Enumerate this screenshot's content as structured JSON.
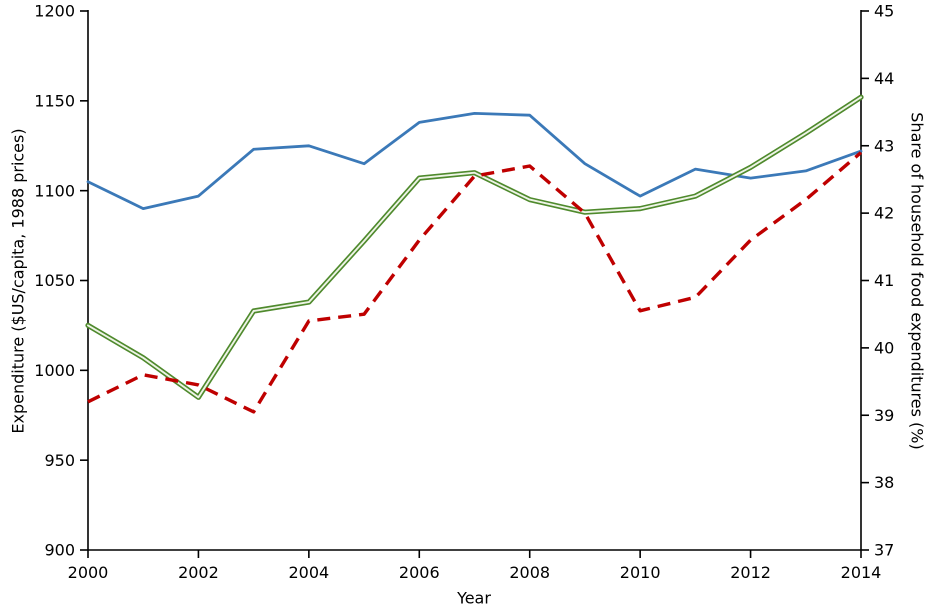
{
  "chart_data": {
    "type": "line",
    "title": "",
    "xlabel": "Year",
    "ylabel_left": "Expenditure ($US/capita, 1988 prices)",
    "ylabel_right": "Share of household food expenditures (%)",
    "x": [
      2000,
      2001,
      2002,
      2003,
      2004,
      2005,
      2006,
      2007,
      2008,
      2009,
      2010,
      2011,
      2012,
      2013,
      2014
    ],
    "x_ticks": [
      2000,
      2002,
      2004,
      2006,
      2008,
      2010,
      2012,
      2014
    ],
    "ylim_left": [
      900,
      1200
    ],
    "yticks_left": [
      900,
      950,
      1000,
      1050,
      1100,
      1150,
      1200
    ],
    "ylim_right": [
      37,
      45
    ],
    "yticks_right": [
      37,
      38,
      39,
      40,
      41,
      42,
      43,
      44,
      45
    ],
    "grid": false,
    "legend": "none",
    "series": [
      {
        "name": "blue-solid-expenditure",
        "axis": "left",
        "style": "solid",
        "color": "#3b79b8",
        "values": [
          1105,
          1090,
          1097,
          1123,
          1125,
          1115,
          1138,
          1143,
          1142,
          1115,
          1097,
          1112,
          1107,
          1111,
          1122
        ]
      },
      {
        "name": "green-double-expenditure",
        "axis": "left",
        "style": "double",
        "color": "#4f8a2d",
        "values": [
          1025,
          1007,
          985,
          1033,
          1038,
          1072,
          1107,
          1110,
          1095,
          1088,
          1090,
          1097,
          1113,
          1132,
          1152
        ]
      },
      {
        "name": "red-dashed-food-share",
        "axis": "right",
        "style": "dashed",
        "color": "#bf0000",
        "values": [
          39.2,
          39.6,
          39.45,
          39.05,
          40.4,
          40.5,
          41.6,
          42.55,
          42.7,
          42.0,
          40.55,
          40.75,
          41.6,
          42.2,
          42.9
        ]
      }
    ]
  }
}
